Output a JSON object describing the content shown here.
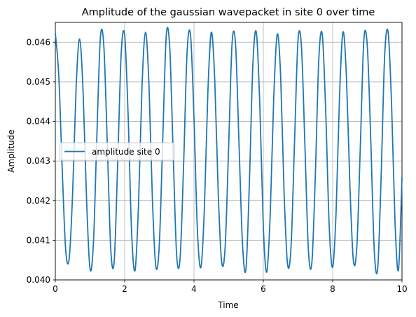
{
  "chart_data": {
    "type": "line",
    "title": "Amplitude of the gaussian wavepacket in site 0 over time",
    "xlabel": "Time",
    "ylabel": "Amplitude",
    "xlim": [
      0,
      10
    ],
    "ylim": [
      0.04,
      0.0465
    ],
    "x_ticks": [
      0,
      2,
      4,
      6,
      8,
      10
    ],
    "x_tick_labels": [
      "0",
      "2",
      "4",
      "6",
      "8",
      "10"
    ],
    "y_ticks": [
      0.04,
      0.041,
      0.042,
      0.043,
      0.044,
      0.045,
      0.046
    ],
    "y_tick_labels": [
      "0.040",
      "0.041",
      "0.042",
      "0.043",
      "0.044",
      "0.045",
      "0.046"
    ],
    "grid": true,
    "legend": {
      "placement": "center-left",
      "entries": [
        "amplitude site 0"
      ]
    },
    "series": [
      {
        "name": "amplitude site 0",
        "color": "#1f77b4",
        "x": [
          0.0,
          0.1,
          0.2,
          0.3,
          0.4,
          0.5,
          0.6,
          0.7,
          0.8,
          0.9,
          1.0,
          1.1,
          1.2,
          1.3,
          1.4,
          1.5,
          1.6,
          1.7,
          1.8,
          1.9,
          2.0,
          2.1,
          2.2,
          2.3,
          2.4,
          2.5,
          2.6,
          2.7,
          2.8,
          2.9,
          3.0,
          3.1,
          3.2,
          3.3,
          3.4,
          3.5,
          3.6,
          3.7,
          3.8,
          3.9,
          4.0,
          4.1,
          4.2,
          4.3,
          4.4,
          4.5,
          4.6,
          4.7,
          4.8,
          4.9,
          5.0,
          5.1,
          5.2,
          5.3,
          5.4,
          5.5,
          5.6,
          5.7,
          5.8,
          5.9,
          6.0,
          6.1,
          6.2,
          6.3,
          6.4,
          6.5,
          6.6,
          6.7,
          6.8,
          6.9,
          7.0,
          7.1,
          7.2,
          7.3,
          7.4,
          7.5,
          7.6,
          7.7,
          7.8,
          7.9,
          8.0,
          8.1,
          8.2,
          8.3,
          8.4,
          8.5,
          8.6,
          8.7,
          8.8,
          8.9,
          9.0,
          9.1,
          9.2,
          9.3,
          9.4,
          9.5,
          9.6,
          9.7,
          9.8,
          9.9,
          10.0
        ],
        "y": [
          0.04623,
          0.04515,
          0.04276,
          0.04075,
          0.04054,
          0.04221,
          0.04487,
          0.04608,
          0.04477,
          0.04206,
          0.04028,
          0.04095,
          0.04368,
          0.04612,
          0.04589,
          0.0434,
          0.04076,
          0.04049,
          0.04298,
          0.04571,
          0.04618,
          0.04415,
          0.04121,
          0.04024,
          0.04191,
          0.04487,
          0.04625,
          0.04495,
          0.04204,
          0.04033,
          0.0409,
          0.04358,
          0.04617,
          0.04587,
          0.04318,
          0.04062,
          0.04056,
          0.04289,
          0.04573,
          0.04618,
          0.04408,
          0.04123,
          0.04032,
          0.04181,
          0.04473,
          0.04625,
          0.04502,
          0.04217,
          0.04044,
          0.04085,
          0.04338,
          0.04599,
          0.04593,
          0.04339,
          0.0409,
          0.04028,
          0.04252,
          0.04547,
          0.04624,
          0.04438,
          0.04133,
          0.0402,
          0.04169,
          0.04459,
          0.0462,
          0.04514,
          0.04217,
          0.04039,
          0.04085,
          0.04347,
          0.04604,
          0.04589,
          0.04339,
          0.04076,
          0.04043,
          0.04263,
          0.04556,
          0.0462,
          0.04424,
          0.04137,
          0.04032,
          0.04174,
          0.04469,
          0.04626,
          0.04506,
          0.04232,
          0.04047,
          0.04088,
          0.04342,
          0.04606,
          0.04589,
          0.04351,
          0.04075,
          0.0403,
          0.04266,
          0.04566,
          0.04625,
          0.04442,
          0.04143,
          0.04026,
          0.04258
        ]
      }
    ]
  }
}
